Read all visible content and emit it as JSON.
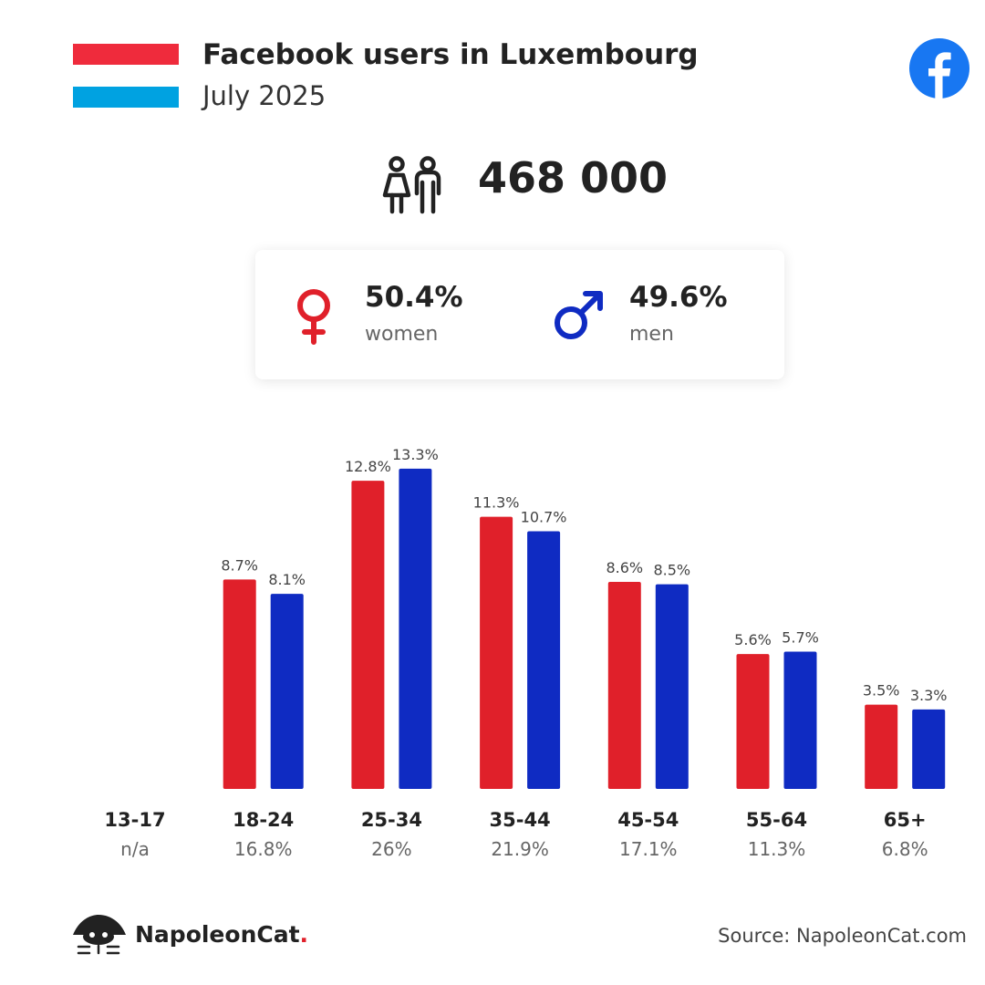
{
  "header": {
    "title": "Facebook users in Luxembourg",
    "subtitle": "July 2025"
  },
  "total_users": "468 000",
  "gender": {
    "women": {
      "percent": "50.4%",
      "label": "women"
    },
    "men": {
      "percent": "49.6%",
      "label": "men"
    }
  },
  "colors": {
    "women": "#e0202a",
    "men": "#0f2bc2",
    "flag_red": "#ef2b3c",
    "flag_white": "#ffffff",
    "flag_blue": "#00a2e1",
    "facebook": "#1877f2"
  },
  "chart_data": {
    "type": "bar",
    "categories": [
      "13-17",
      "18-24",
      "25-34",
      "35-44",
      "45-54",
      "55-64",
      "65+"
    ],
    "category_totals": [
      "n/a",
      "16.8%",
      "26%",
      "21.9%",
      "17.1%",
      "11.3%",
      "6.8%"
    ],
    "series": [
      {
        "name": "women",
        "values": [
          null,
          8.7,
          12.8,
          11.3,
          8.6,
          5.6,
          3.5
        ],
        "labels": [
          "",
          "8.7%",
          "12.8%",
          "11.3%",
          "8.6%",
          "5.6%",
          "3.5%"
        ]
      },
      {
        "name": "men",
        "values": [
          null,
          8.1,
          13.3,
          10.7,
          8.5,
          5.7,
          3.3
        ],
        "labels": [
          "",
          "8.1%",
          "13.3%",
          "10.7%",
          "8.5%",
          "5.7%",
          "3.3%"
        ]
      }
    ],
    "unit": "%"
  },
  "footer": {
    "brand": "NapoleonCat",
    "brand_dot": ".",
    "source": "Source: NapoleonCat.com"
  }
}
